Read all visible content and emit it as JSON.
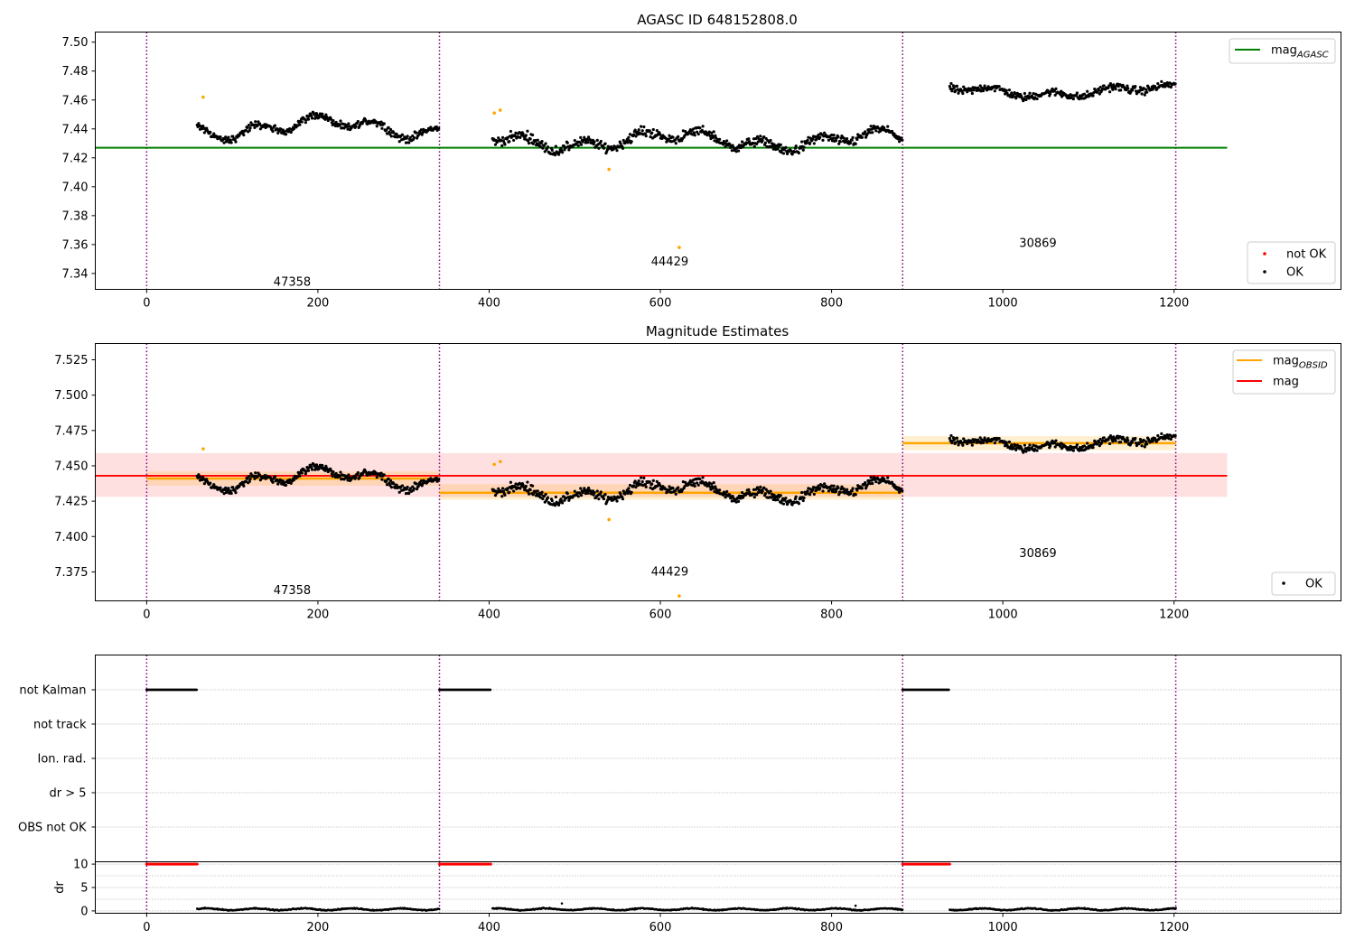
{
  "chart_data": [
    {
      "type": "scatter",
      "title": "AGASC ID 648152808.0",
      "xlim": [
        -60,
        1395
      ],
      "ylim": [
        7.329,
        7.507
      ],
      "xticks": [
        0,
        200,
        400,
        600,
        800,
        1000,
        1200
      ],
      "yticks": [
        7.34,
        7.36,
        7.38,
        7.4,
        7.42,
        7.44,
        7.46,
        7.48,
        7.5
      ],
      "ytick_labels": [
        "7.34",
        "7.36",
        "7.38",
        "7.40",
        "7.42",
        "7.44",
        "7.46",
        "7.48",
        "7.50"
      ],
      "vlines": [
        0,
        342,
        883,
        1202
      ],
      "obsid_labels": [
        {
          "text": "47358",
          "x": 170,
          "y": 7.334
        },
        {
          "text": "44429",
          "x": 611,
          "y": 7.348
        },
        {
          "text": "30869",
          "x": 1041,
          "y": 7.361
        }
      ],
      "series": [
        {
          "name": "mag_AGASC",
          "kind": "hline",
          "y": 7.427,
          "x": [
            -60,
            1262
          ],
          "color": "#008000"
        },
        {
          "name": "OK",
          "kind": "points",
          "color": "#000000"
        },
        {
          "name": "not OK",
          "kind": "points",
          "color": "#ff0000"
        }
      ],
      "segments": [
        {
          "x": [
            59,
            342
          ],
          "base": 7.441,
          "amp": 0.009,
          "wig": 0.004
        },
        {
          "x": [
            404,
            883
          ],
          "base": 7.432,
          "amp": 0.008,
          "wig": 0.005
        },
        {
          "x": [
            938,
            1202
          ],
          "base": 7.466,
          "amp": 0.005,
          "wig": 0.004
        }
      ],
      "orange_points": [
        {
          "x": 66,
          "y": 7.462
        },
        {
          "x": 406,
          "y": 7.451
        },
        {
          "x": 413,
          "y": 7.453
        },
        {
          "x": 540,
          "y": 7.412
        },
        {
          "x": 622,
          "y": 7.358
        }
      ],
      "legends": [
        {
          "position": "upper-right",
          "entries": [
            {
              "label": "mag",
              "sub": "AGASC",
              "color": "#008000",
              "marker": "line"
            }
          ]
        },
        {
          "position": "lower-right",
          "entries": [
            {
              "label": "not OK",
              "color": "#ff0000",
              "marker": "dot"
            },
            {
              "label": "OK",
              "color": "#000000",
              "marker": "dot"
            }
          ]
        }
      ]
    },
    {
      "type": "scatter",
      "title": "Magnitude Estimates",
      "xlim": [
        -60,
        1395
      ],
      "ylim": [
        7.3545,
        7.5365
      ],
      "xticks": [
        0,
        200,
        400,
        600,
        800,
        1000,
        1200
      ],
      "yticks": [
        7.375,
        7.4,
        7.425,
        7.45,
        7.475,
        7.5,
        7.525
      ],
      "ytick_labels": [
        "7.375",
        "7.400",
        "7.425",
        "7.450",
        "7.475",
        "7.500",
        "7.525"
      ],
      "vlines": [
        0,
        342,
        883,
        1202
      ],
      "obsid_labels": [
        {
          "text": "47358",
          "x": 170,
          "y": 7.362
        },
        {
          "text": "44429",
          "x": 611,
          "y": 7.375
        },
        {
          "text": "30869",
          "x": 1041,
          "y": 7.388
        }
      ],
      "mag": {
        "y": 7.443,
        "band": [
          7.428,
          7.459
        ],
        "x": [
          -60,
          1262
        ],
        "color": "#ff0000"
      },
      "obsid_mags": [
        {
          "x": [
            0,
            342
          ],
          "y": 7.441,
          "band": [
            7.436,
            7.446
          ]
        },
        {
          "x": [
            342,
            883
          ],
          "y": 7.431,
          "band": [
            7.426,
            7.437
          ]
        },
        {
          "x": [
            883,
            1202
          ],
          "y": 7.466,
          "band": [
            7.461,
            7.471
          ]
        }
      ],
      "legends": [
        {
          "position": "upper-right",
          "entries": [
            {
              "label": "mag",
              "sub": "OBSID",
              "color": "#ffa500",
              "marker": "line"
            },
            {
              "label": "mag",
              "sub": "",
              "color": "#ff0000",
              "marker": "line"
            }
          ]
        },
        {
          "position": "lower-right",
          "entries": [
            {
              "label": "OK",
              "color": "#000000",
              "marker": "dot"
            }
          ]
        }
      ]
    },
    {
      "type": "scatter",
      "title": "",
      "xlim": [
        -60,
        1395
      ],
      "flag_rows": [
        "not Kalman",
        "not track",
        "Ion. rad.",
        "dr > 5",
        "OBS not OK"
      ],
      "flag_ranges": [
        {
          "row": "not Kalman",
          "x": [
            [
              0,
              59
            ],
            [
              342,
              402
            ],
            [
              883,
              938
            ]
          ]
        }
      ],
      "vlines": [
        0,
        342,
        883,
        1202
      ]
    },
    {
      "type": "scatter",
      "title": "",
      "xlim": [
        -60,
        1395
      ],
      "ylim": [
        -0.5,
        10.5
      ],
      "ylabel": "dr",
      "yticks": [
        0,
        5,
        10
      ],
      "ytick_labels": [
        "0",
        "5",
        "10"
      ],
      "xticks": [
        0,
        200,
        400,
        600,
        800,
        1000,
        1200
      ],
      "xtick_labels": [
        "0",
        "200",
        "400",
        "600",
        "800",
        "1000",
        "1200"
      ],
      "vlines": [
        0,
        342,
        883,
        1202
      ],
      "red_ranges": [
        [
          0,
          59
        ],
        [
          342,
          402
        ],
        [
          883,
          938
        ]
      ],
      "dr_segments": [
        [
          59,
          342
        ],
        [
          404,
          883
        ],
        [
          938,
          1202
        ]
      ],
      "outliers": [
        {
          "x": 485,
          "y": 1.6
        },
        {
          "x": 828,
          "y": 1.1
        },
        {
          "x": 1202,
          "y": 0.6
        }
      ]
    }
  ]
}
